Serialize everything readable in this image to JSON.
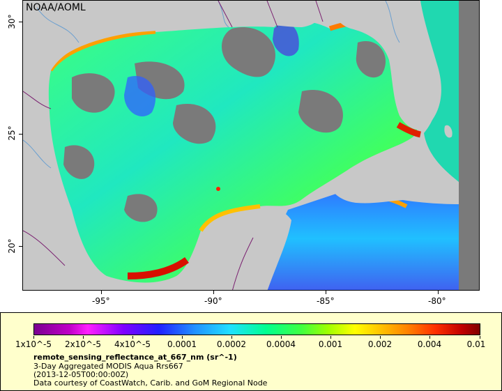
{
  "map": {
    "title": "NOAA/AOML",
    "lon_ticks": [
      "-95°",
      "-90°",
      "-85°",
      "-80°"
    ],
    "lat_ticks": [
      "30°",
      "25°",
      "20°"
    ],
    "colors": {
      "land": "#c8c8c8",
      "no_data": "#7a7a7a",
      "rivers": "#6a9fd0",
      "borders": "#7a2070"
    }
  },
  "legend": {
    "colorbar_labels": [
      "1x10^-5",
      "2x10^-5",
      "4x10^-5",
      "0.0001",
      "0.0002",
      "0.0004",
      "0.001",
      "0.002",
      "0.004",
      "0.01"
    ],
    "variable": "remote_sensing_reflectance_at_667_nm (sr^-1)",
    "description": "3-Day Aggregated MODIS Aqua Rrs667",
    "date": "(2013-12-05T00:00:00Z)",
    "credit": "Data courtesy of CoastWatch, Carib. and GoM Regional Node"
  }
}
